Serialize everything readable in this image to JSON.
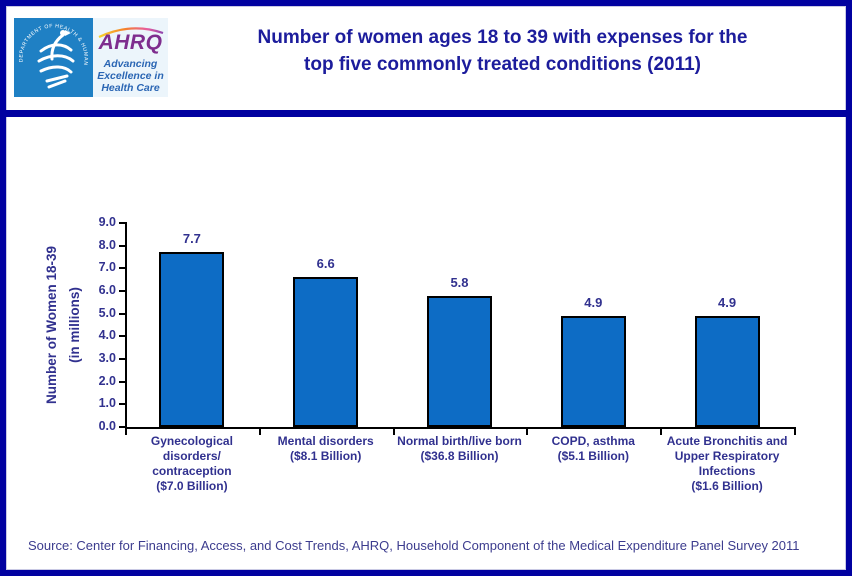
{
  "header": {
    "title_line1": "Number of women ages 18 to 39 with expenses for the",
    "title_line2": "top five commonly treated conditions (2011)"
  },
  "logo": {
    "hhs_seal_text": "DEPARTMENT OF HEALTH & HUMAN SERVICES · USA",
    "ahrq_acronym": "AHRQ",
    "tagline_line1": "Advancing",
    "tagline_line2": "Excellence in",
    "tagline_line3": "Health Care"
  },
  "chart_data": {
    "type": "bar",
    "title": "Number of women ages 18 to 39 with expenses for the top five commonly treated conditions (2011)",
    "categories": [
      {
        "name": "Gynecological disorders/contraception",
        "expense": "($7.0 Billion)",
        "label_lines": [
          "Gynecological",
          "disorders/",
          "contraception",
          "($7.0 Billion)"
        ]
      },
      {
        "name": "Mental disorders",
        "expense": "($8.1 Billion)",
        "label_lines": [
          "Mental disorders",
          "($8.1 Billion)"
        ]
      },
      {
        "name": "Normal birth/live born",
        "expense": "($36.8 Billion)",
        "label_lines": [
          "Normal birth/live born",
          "($36.8 Billion)"
        ]
      },
      {
        "name": "COPD, asthma",
        "expense": "($5.1 Billion)",
        "label_lines": [
          "COPD, asthma",
          "($5.1 Billion)"
        ]
      },
      {
        "name": "Acute Bronchitis and Upper Respiratory Infections",
        "expense": "($1.6 Billion)",
        "label_lines": [
          "Acute Bronchitis and",
          "Upper Respiratory",
          "Infections",
          "($1.6 Billion)"
        ]
      }
    ],
    "values": [
      7.7,
      6.6,
      5.8,
      4.9,
      4.9
    ],
    "value_labels": [
      "7.7",
      "6.6",
      "5.8",
      "4.9",
      "4.9"
    ],
    "xlabel": "",
    "ylabel_line1": "Number of Women 18-39",
    "ylabel_line2": "(in millions)",
    "ylim": [
      0,
      9
    ],
    "yticks": [
      "0.0",
      "1.0",
      "2.0",
      "3.0",
      "4.0",
      "5.0",
      "6.0",
      "7.0",
      "8.0",
      "9.0"
    ],
    "grid": false,
    "legend": false,
    "bar_color": "#0d6cc5",
    "bar_border_color": "#000000"
  },
  "footer": {
    "source": "Source: Center for Financing, Access, and Cost Trends, AHRQ, Household Component of the Medical Expenditure Panel Survey 2011"
  },
  "colors": {
    "border_navy": "#0101a0",
    "title_navy": "#1c1c9c",
    "chart_text_navy": "#31318f",
    "hhs_blue": "#1f80c4",
    "ahrq_purple": "#7e2d8e",
    "tagline_blue": "#2b66b4",
    "source_text": "#3c3c8e"
  }
}
